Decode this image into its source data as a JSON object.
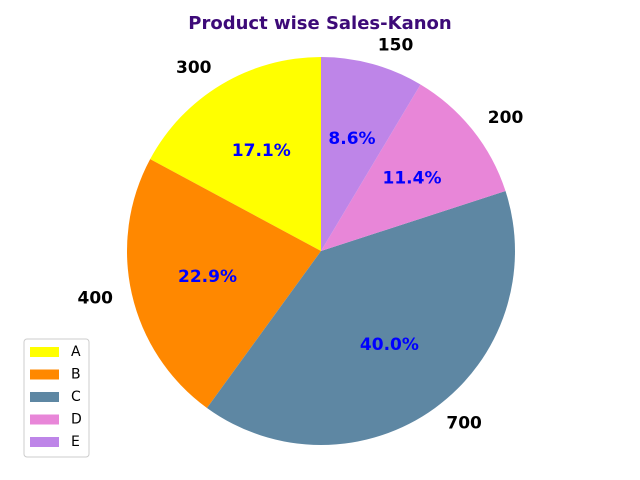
{
  "chart_data": {
    "type": "pie",
    "title": "Product wise Sales-Kanon",
    "title_color": "#3d0a78",
    "categories": [
      "A",
      "B",
      "C",
      "D",
      "E"
    ],
    "values": [
      300,
      400,
      700,
      200,
      150
    ],
    "value_labels": [
      "300",
      "400",
      "700",
      "200",
      "150"
    ],
    "percent_labels": [
      "17.1%",
      "22.9%",
      "40.0%",
      "11.4%",
      "8.6%"
    ],
    "colors": [
      "#ffff00",
      "#ff8800",
      "#5e87a3",
      "#e886d8",
      "#be85e8"
    ],
    "percent_label_color": "#0000ff",
    "start_angle_deg": 90,
    "direction": "counterclockwise",
    "legend_position": "lower-left"
  }
}
